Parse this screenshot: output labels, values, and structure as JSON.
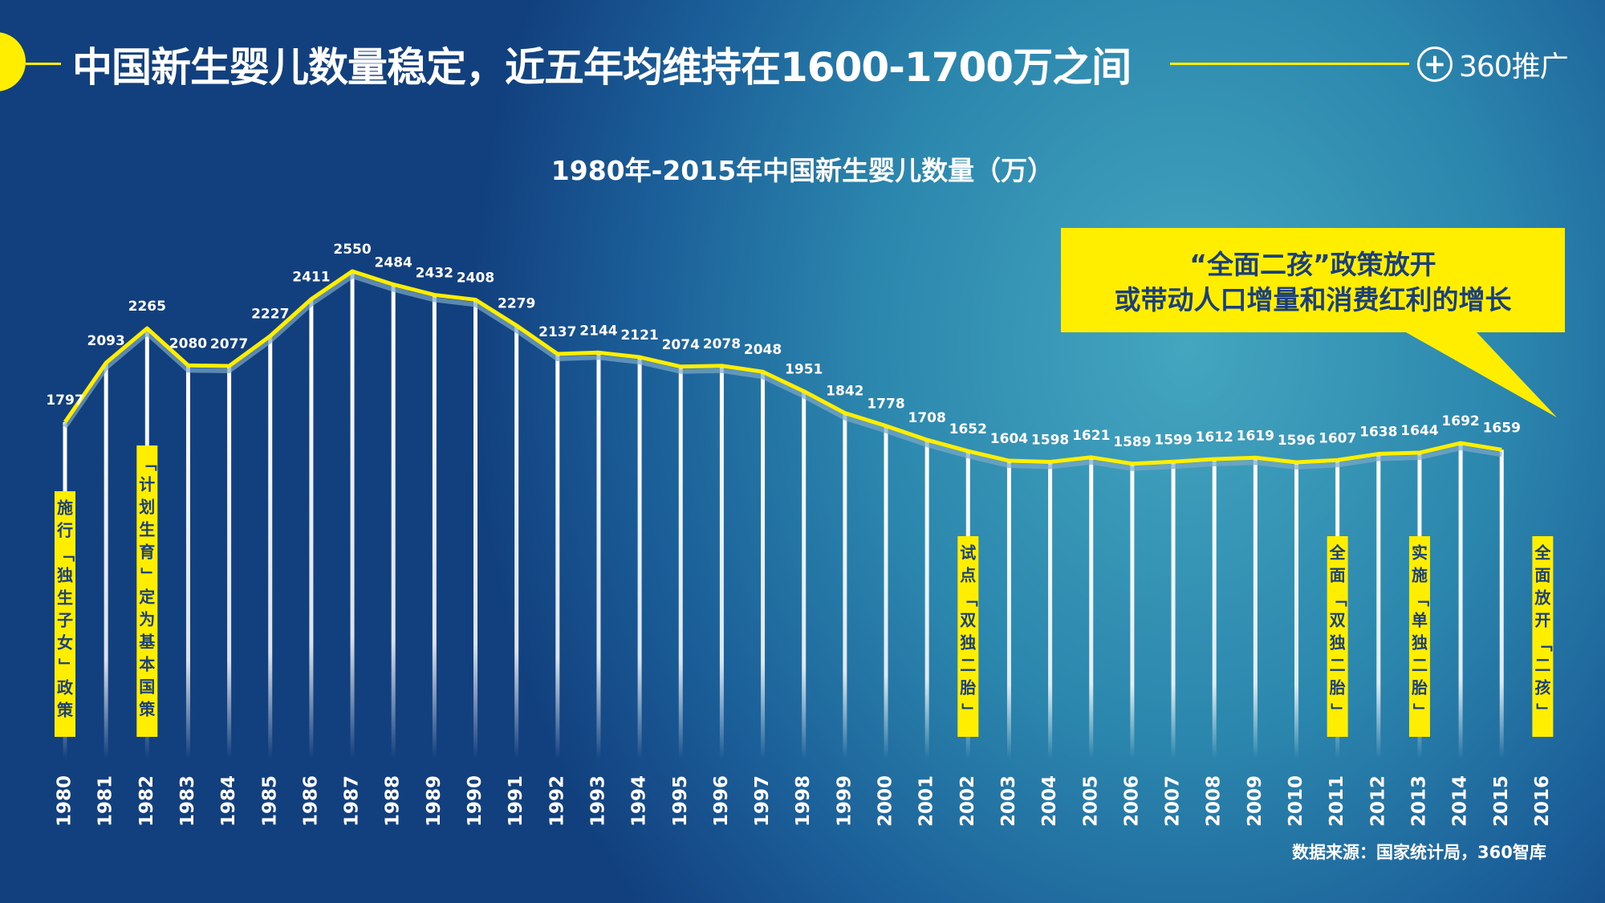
{
  "header": {
    "title": "中国新生婴儿数量稳定，近五年均维持在1600-1700万之间",
    "logo_text": "360推广",
    "logo_icon": "plus-circle-icon"
  },
  "colors": {
    "accent": "#ffee00",
    "line": "#ffee00",
    "text": "#ffffff",
    "callout_text": "#1a3f7a"
  },
  "chart_data": {
    "type": "line",
    "title": "1980年-2015年中国新生婴儿数量（万）",
    "categories": [
      "1980",
      "1981",
      "1982",
      "1983",
      "1984",
      "1985",
      "1986",
      "1987",
      "1988",
      "1989",
      "1990",
      "1991",
      "1992",
      "1993",
      "1994",
      "1995",
      "1996",
      "1997",
      "1998",
      "1999",
      "2000",
      "2001",
      "2002",
      "2003",
      "2004",
      "2005",
      "2006",
      "2007",
      "2008",
      "2009",
      "2010",
      "2011",
      "2012",
      "2013",
      "2014",
      "2015",
      "2016"
    ],
    "values": [
      1797,
      2093,
      2265,
      2080,
      2077,
      2227,
      2411,
      2550,
      2484,
      2432,
      2408,
      2279,
      2137,
      2144,
      2121,
      2074,
      2078,
      2048,
      1951,
      1842,
      1778,
      1708,
      1652,
      1604,
      1598,
      1621,
      1589,
      1599,
      1612,
      1619,
      1596,
      1607,
      1638,
      1644,
      1692,
      1659,
      null
    ],
    "annotations": [
      {
        "year": "1980",
        "text": "施行「独生子女」政策"
      },
      {
        "year": "1982",
        "text": "「计划生育」定为基本国策"
      },
      {
        "year": "2002",
        "text": "试点「双独二胎」"
      },
      {
        "year": "2011",
        "text": "全面「双独二胎」"
      },
      {
        "year": "2013",
        "text": "实施「单独二胎」"
      },
      {
        "year": "2016",
        "text": "全面放开「二孩」"
      }
    ]
  },
  "callout": {
    "line1": "“全面二孩”政策放开",
    "line2": "或带动人口增量和消费红利的增长"
  },
  "source": "数据来源：国家统计局，360智库"
}
